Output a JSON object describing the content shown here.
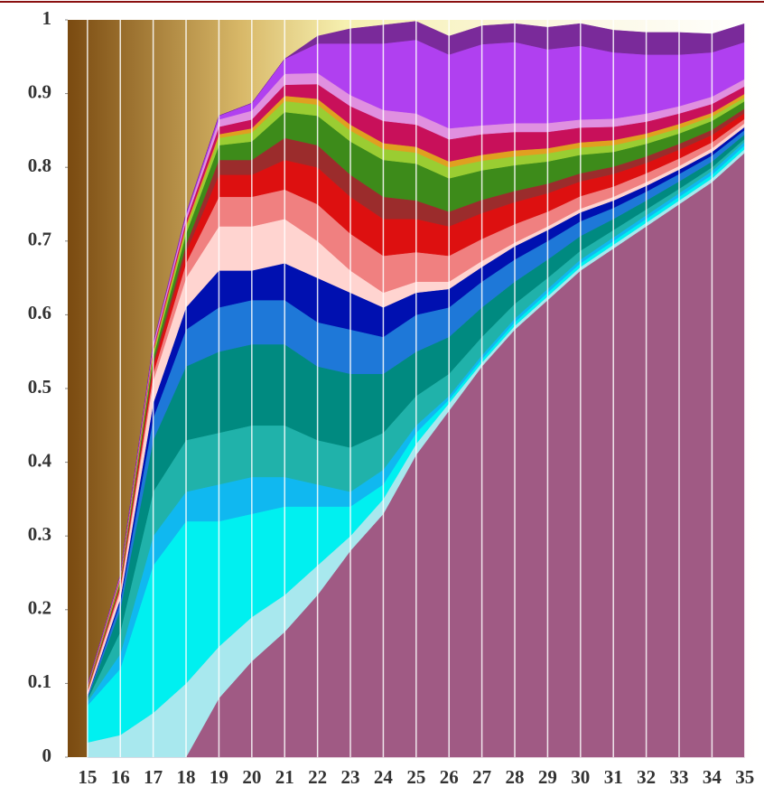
{
  "chart_data": {
    "type": "stacked-area",
    "x": [
      15,
      16,
      17,
      18,
      19,
      20,
      21,
      22,
      23,
      24,
      25,
      26,
      27,
      28,
      29,
      30,
      31,
      32,
      33,
      34,
      35
    ],
    "xlim": [
      14.4,
      35.5
    ],
    "xticks": [
      15,
      16,
      17,
      18,
      19,
      20,
      21,
      22,
      23,
      24,
      25,
      26,
      27,
      28,
      29,
      30,
      31,
      32,
      33,
      34,
      35
    ],
    "ylim": [
      0,
      1
    ],
    "yticks": [
      0,
      0.1,
      0.2,
      0.3,
      0.4,
      0.5,
      0.6,
      0.7,
      0.8,
      0.9,
      1
    ],
    "grid": true,
    "series": [
      {
        "color": "#a05a84",
        "values": [
          0,
          0,
          0,
          0,
          0.08,
          0.13,
          0.17,
          0.22,
          0.28,
          0.33,
          0.41,
          0.47,
          0.53,
          0.58,
          0.62,
          0.66,
          0.69,
          0.72,
          0.75,
          0.78,
          0.82
        ]
      },
      {
        "color": "#a8e8ee",
        "values": [
          0.02,
          0.03,
          0.06,
          0.1,
          0.07,
          0.06,
          0.05,
          0.04,
          0.02,
          0.02,
          0.015,
          0.01,
          0.005,
          0.005,
          0.005,
          0.005,
          0.005,
          0.005,
          0.005,
          0.005,
          0.005
        ]
      },
      {
        "color": "#00f0f0",
        "values": [
          0.05,
          0.09,
          0.2,
          0.22,
          0.17,
          0.14,
          0.12,
          0.08,
          0.04,
          0.02,
          0.015,
          0.005,
          0.005,
          0.005,
          0.005,
          0.005,
          0.005,
          0.005,
          0.005,
          0.005,
          0.005
        ]
      },
      {
        "color": "#10b8f0",
        "values": [
          0.005,
          0.02,
          0.04,
          0.04,
          0.05,
          0.05,
          0.04,
          0.03,
          0.02,
          0.02,
          0.01,
          0.005,
          0.005,
          0.005,
          0.005,
          0.005,
          0.005,
          0.005,
          0.005,
          0.005,
          0.005
        ]
      },
      {
        "color": "#20b2aa",
        "values": [
          0.003,
          0.03,
          0.06,
          0.07,
          0.07,
          0.07,
          0.07,
          0.06,
          0.06,
          0.05,
          0.04,
          0.03,
          0.025,
          0.02,
          0.015,
          0.012,
          0.01,
          0.008,
          0.006,
          0.005,
          0.004
        ]
      },
      {
        "color": "#008a80",
        "values": [
          0.002,
          0.03,
          0.07,
          0.1,
          0.11,
          0.11,
          0.11,
          0.1,
          0.1,
          0.08,
          0.06,
          0.05,
          0.04,
          0.03,
          0.025,
          0.02,
          0.015,
          0.012,
          0.01,
          0.008,
          0.006
        ]
      },
      {
        "color": "#1e78d8",
        "values": [
          0.002,
          0.01,
          0.03,
          0.05,
          0.06,
          0.06,
          0.06,
          0.06,
          0.06,
          0.05,
          0.05,
          0.04,
          0.035,
          0.03,
          0.025,
          0.02,
          0.015,
          0.012,
          0.01,
          0.008,
          0.006
        ]
      },
      {
        "color": "#0010b0",
        "values": [
          0.001,
          0.005,
          0.02,
          0.03,
          0.05,
          0.04,
          0.05,
          0.06,
          0.05,
          0.04,
          0.03,
          0.025,
          0.02,
          0.018,
          0.015,
          0.012,
          0.01,
          0.008,
          0.006,
          0.005,
          0.004
        ]
      },
      {
        "color": "#ffd4d0",
        "values": [
          0.005,
          0.01,
          0.03,
          0.04,
          0.06,
          0.06,
          0.06,
          0.05,
          0.03,
          0.02,
          0.015,
          0.01,
          0.008,
          0.005,
          0.005,
          0.005,
          0.005,
          0.005,
          0.005,
          0.005,
          0.005
        ]
      },
      {
        "color": "#f08080",
        "values": [
          0.002,
          0.005,
          0.01,
          0.02,
          0.04,
          0.04,
          0.04,
          0.05,
          0.05,
          0.05,
          0.04,
          0.035,
          0.03,
          0.025,
          0.02,
          0.017,
          0.014,
          0.012,
          0.01,
          0.008,
          0.006
        ]
      },
      {
        "color": "#dd1010",
        "values": [
          0.001,
          0.003,
          0.01,
          0.015,
          0.03,
          0.03,
          0.04,
          0.05,
          0.05,
          0.05,
          0.045,
          0.04,
          0.035,
          0.03,
          0.025,
          0.02,
          0.017,
          0.014,
          0.012,
          0.01,
          0.008
        ]
      },
      {
        "color": "#9b2c2c",
        "values": [
          0.001,
          0.002,
          0.005,
          0.01,
          0.02,
          0.02,
          0.03,
          0.03,
          0.03,
          0.03,
          0.025,
          0.02,
          0.018,
          0.015,
          0.013,
          0.011,
          0.01,
          0.009,
          0.008,
          0.007,
          0.006
        ]
      },
      {
        "color": "#3d8b1a",
        "values": [
          0.001,
          0.003,
          0.008,
          0.015,
          0.02,
          0.025,
          0.035,
          0.04,
          0.045,
          0.05,
          0.05,
          0.045,
          0.04,
          0.035,
          0.03,
          0.025,
          0.02,
          0.017,
          0.014,
          0.012,
          0.01
        ]
      },
      {
        "color": "#9acd32",
        "values": [
          0.001,
          0.002,
          0.005,
          0.008,
          0.01,
          0.012,
          0.015,
          0.015,
          0.015,
          0.015,
          0.015,
          0.015,
          0.013,
          0.012,
          0.011,
          0.01,
          0.009,
          0.008,
          0.007,
          0.006,
          0.005
        ]
      },
      {
        "color": "#e0a020",
        "values": [
          0.001,
          0.002,
          0.003,
          0.004,
          0.005,
          0.006,
          0.007,
          0.008,
          0.008,
          0.008,
          0.008,
          0.008,
          0.008,
          0.008,
          0.007,
          0.007,
          0.007,
          0.006,
          0.006,
          0.005,
          0.005
        ]
      },
      {
        "color": "#c8105a",
        "values": [
          0.001,
          0.002,
          0.004,
          0.006,
          0.01,
          0.012,
          0.015,
          0.02,
          0.025,
          0.03,
          0.03,
          0.03,
          0.028,
          0.025,
          0.022,
          0.02,
          0.018,
          0.016,
          0.014,
          0.012,
          0.01
        ]
      },
      {
        "color": "#e090e0",
        "values": [
          0.001,
          0.003,
          0.005,
          0.006,
          0.01,
          0.012,
          0.015,
          0.015,
          0.015,
          0.015,
          0.015,
          0.015,
          0.012,
          0.012,
          0.012,
          0.011,
          0.011,
          0.011,
          0.01,
          0.01,
          0.01
        ]
      },
      {
        "color": "#b040f0",
        "values": [
          0,
          0,
          0.001,
          0.003,
          0.005,
          0.01,
          0.02,
          0.04,
          0.07,
          0.09,
          0.1,
          0.1,
          0.11,
          0.11,
          0.1,
          0.1,
          0.09,
          0.08,
          0.07,
          0.06,
          0.05
        ]
      },
      {
        "color": "#7a2a9a",
        "values": [
          0,
          0,
          0,
          0,
          0,
          0,
          0,
          0.01,
          0.02,
          0.025,
          0.025,
          0.025,
          0.025,
          0.025,
          0.03,
          0.03,
          0.03,
          0.03,
          0.03,
          0.025,
          0.025
        ]
      }
    ]
  }
}
